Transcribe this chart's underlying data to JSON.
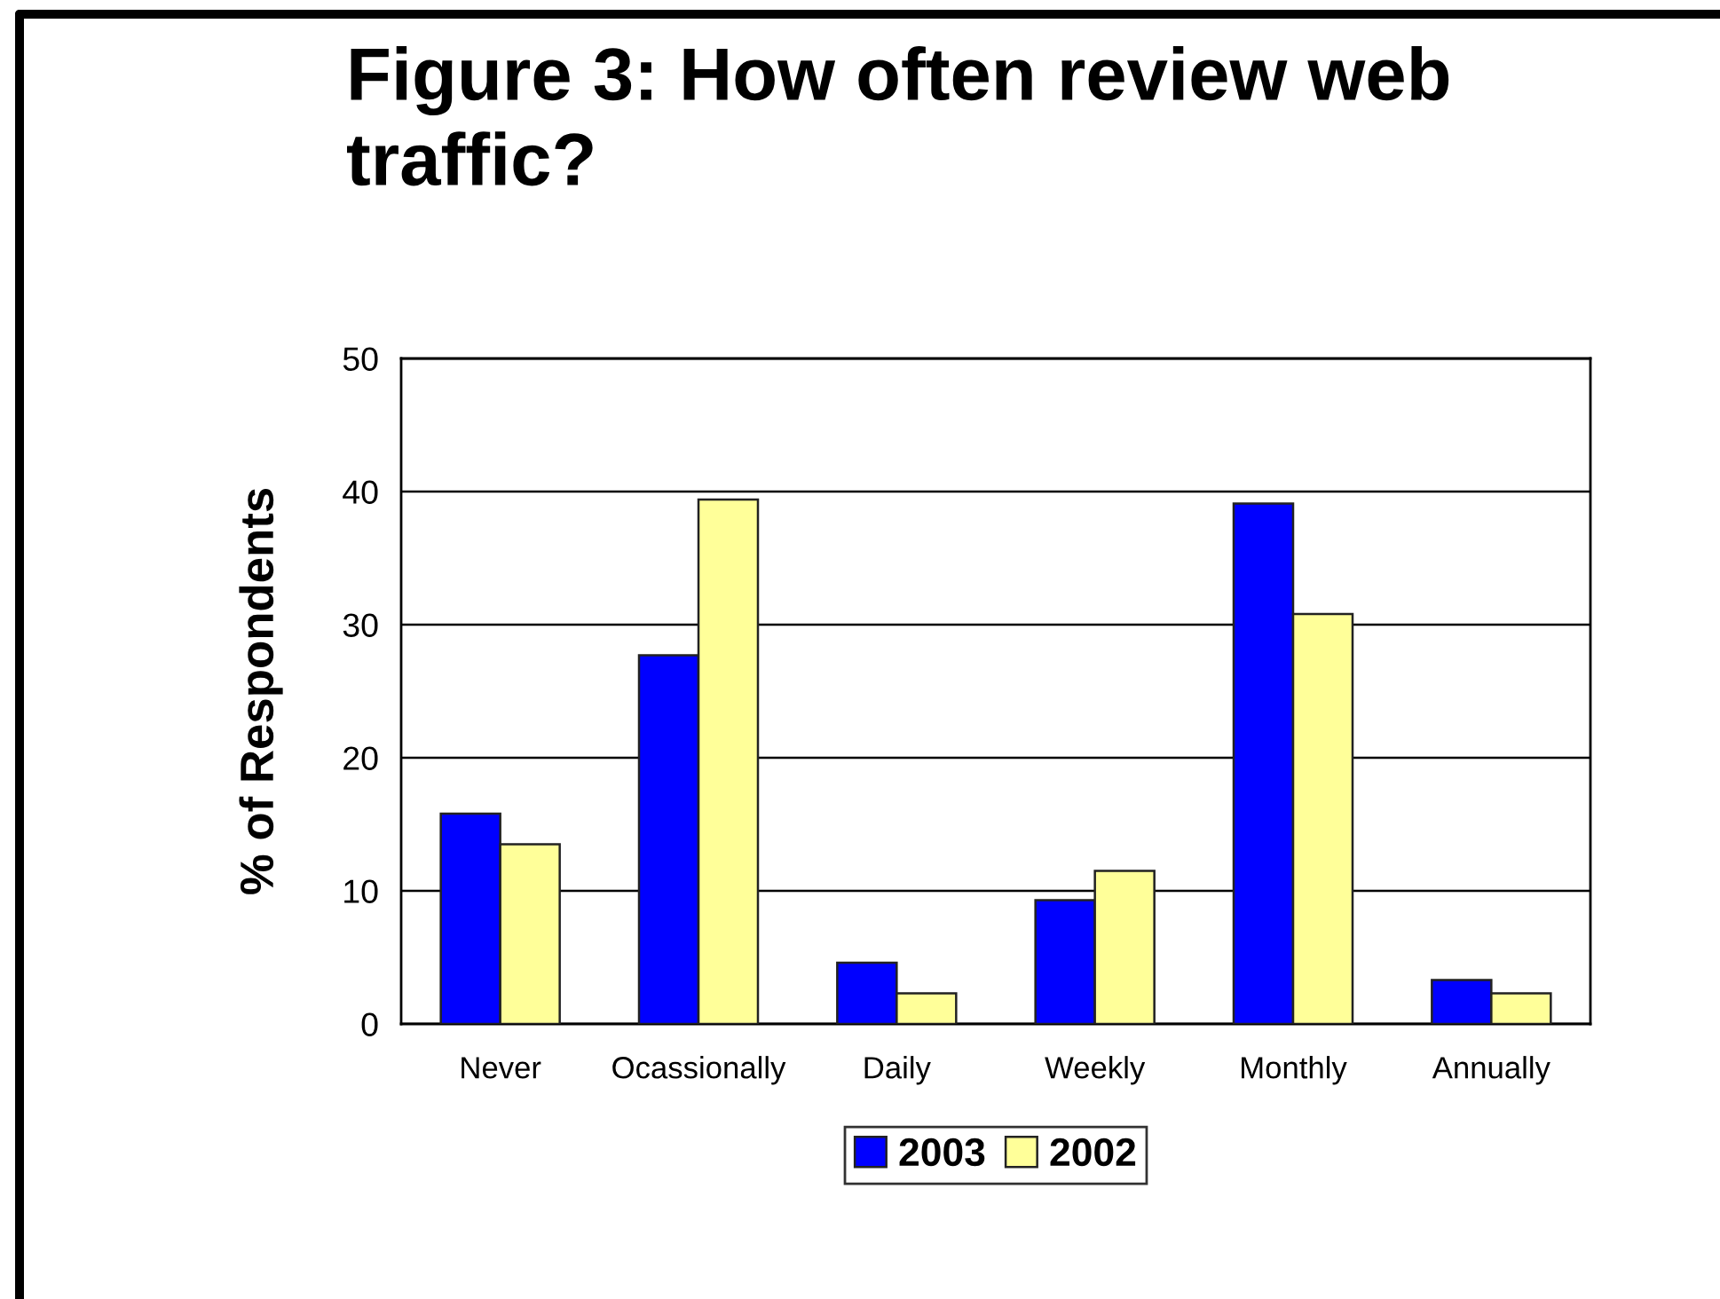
{
  "chart_data": {
    "type": "bar",
    "title": "Figure 3: How often review web traffic?",
    "ylabel": "% of Respondents",
    "categories": [
      "Never",
      "Ocassionally",
      "Daily",
      "Weekly",
      "Monthly",
      "Annually"
    ],
    "series": [
      {
        "name": "2003",
        "color": "#0000ff",
        "values": [
          15.8,
          27.7,
          4.6,
          9.3,
          39.1,
          3.3
        ]
      },
      {
        "name": "2002",
        "color": "#ffff99",
        "values": [
          13.5,
          39.4,
          2.3,
          11.5,
          30.8,
          2.3
        ]
      }
    ],
    "ylim": [
      0,
      50
    ],
    "yticks": [
      0,
      10,
      20,
      30,
      40,
      50
    ],
    "grid": "y",
    "legend": "bottom"
  }
}
